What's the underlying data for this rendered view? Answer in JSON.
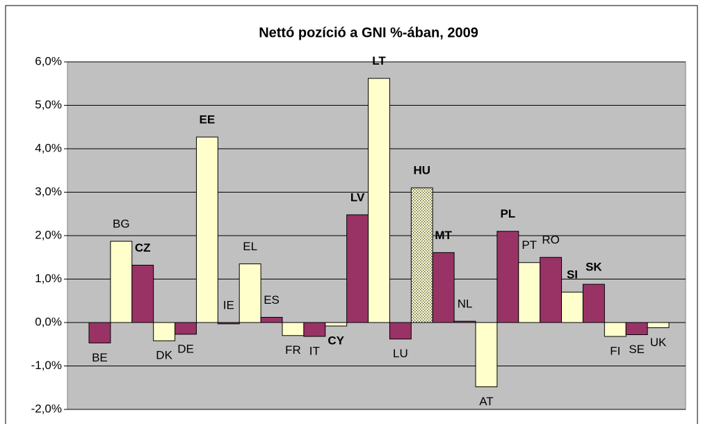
{
  "chart_data": {
    "type": "bar",
    "title": "Nettó pozíció a GNI %-ában, 2009",
    "categories": [
      "BE",
      "BG",
      "CZ",
      "DK",
      "DE",
      "EE",
      "IE",
      "EL",
      "ES",
      "FR",
      "IT",
      "CY",
      "LV",
      "LT",
      "LU",
      "HU",
      "MT",
      "NL",
      "AT",
      "PL",
      "PT",
      "RO",
      "SI",
      "SK",
      "FI",
      "SE",
      "UK"
    ],
    "values": [
      -0.47,
      1.87,
      1.32,
      -0.42,
      -0.27,
      4.27,
      -0.03,
      1.35,
      0.12,
      -0.3,
      -0.32,
      -0.08,
      2.48,
      5.62,
      -0.38,
      3.1,
      1.61,
      0.03,
      -1.48,
      2.1,
      1.38,
      1.5,
      0.7,
      0.88,
      -0.32,
      -0.28,
      -0.12
    ],
    "colors": [
      "#993366",
      "#ffffcc",
      "#993366",
      "#ffffcc",
      "#993366",
      "#ffffcc",
      "#993366",
      "#ffffcc",
      "#993366",
      "#ffffcc",
      "#993366",
      "#ffffcc",
      "#993366",
      "#ffffcc",
      "#993366",
      "#ffffcc",
      "#993366",
      "#993366",
      "#ffffcc",
      "#993366",
      "#ffffcc",
      "#993366",
      "#ffffcc",
      "#993366",
      "#ffffcc",
      "#993366",
      "#ffffcc"
    ],
    "patterned": [
      "HU"
    ],
    "bold": [
      false,
      false,
      true,
      false,
      false,
      true,
      false,
      false,
      false,
      false,
      false,
      true,
      true,
      true,
      false,
      true,
      true,
      false,
      false,
      true,
      false,
      false,
      true,
      true,
      false,
      false,
      false
    ],
    "ylim": [
      -2,
      6
    ],
    "yticks": [
      {
        "value": -2,
        "label": "-2,0%"
      },
      {
        "value": -1,
        "label": "-1,0%"
      },
      {
        "value": 0,
        "label": "0,0%"
      },
      {
        "value": 1,
        "label": "1,0%"
      },
      {
        "value": 2,
        "label": "2,0%"
      },
      {
        "value": 3,
        "label": "3,0%"
      },
      {
        "value": 4,
        "label": "4,0%"
      },
      {
        "value": 5,
        "label": "5,0%"
      },
      {
        "value": 6,
        "label": "6,0%"
      }
    ],
    "grid": true
  }
}
